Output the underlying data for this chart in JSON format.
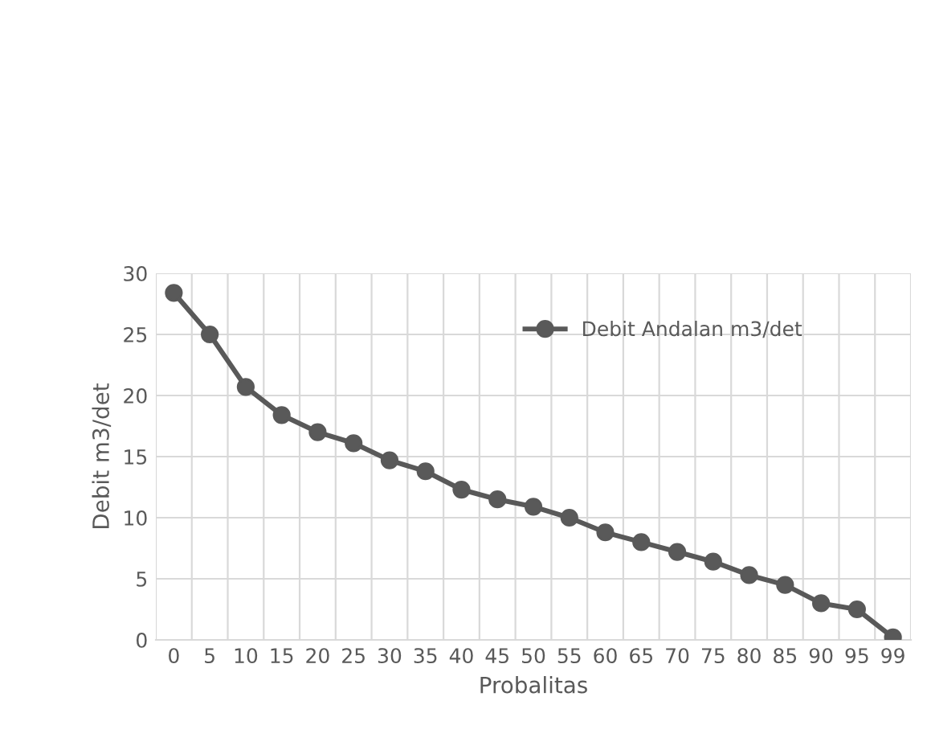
{
  "chart_data": {
    "type": "line",
    "xlabel": "Probalitas",
    "ylabel": "Debit m3/det",
    "categories": [
      "0",
      "5",
      "10",
      "15",
      "20",
      "25",
      "30",
      "35",
      "40",
      "45",
      "50",
      "55",
      "60",
      "65",
      "70",
      "75",
      "80",
      "85",
      "90",
      "95",
      "99"
    ],
    "series": [
      {
        "name": "Debit Andalan m3/det",
        "color": "#595959",
        "values": [
          28.4,
          25.0,
          20.7,
          18.4,
          17.0,
          16.1,
          14.7,
          13.8,
          12.3,
          11.5,
          10.9,
          10.0,
          8.8,
          8.0,
          7.2,
          6.4,
          5.3,
          4.5,
          3.0,
          2.5,
          0.2
        ]
      }
    ],
    "ylim": [
      0,
      30
    ],
    "yticks": [
      0,
      5,
      10,
      15,
      20,
      25,
      30
    ],
    "grid": true,
    "legend": "top right",
    "marker": "circle",
    "line_style": "solid"
  }
}
